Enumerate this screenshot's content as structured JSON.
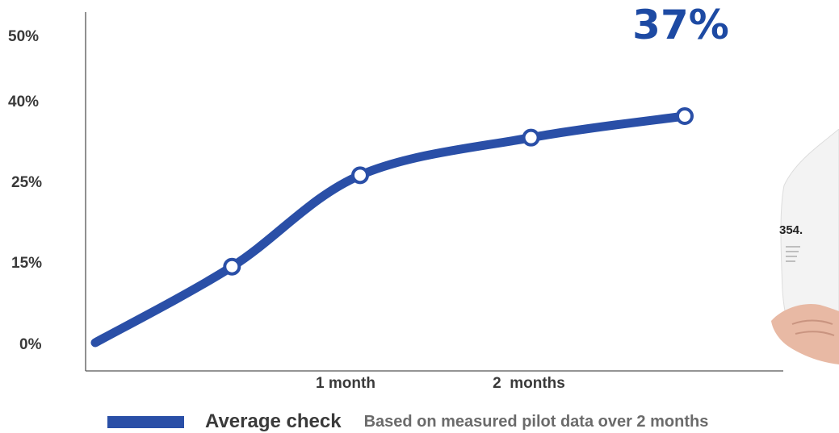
{
  "chart_data": {
    "type": "line",
    "title": "",
    "xlabel": "",
    "ylabel": "",
    "y_ticks": [
      "0%",
      "15%",
      "25%",
      "40%",
      "50%"
    ],
    "x_ticks": [
      {
        "label": "1 month",
        "x": 1
      },
      {
        "label": "2  months",
        "x": 2
      }
    ],
    "x_range": [
      -0.9,
      3.5
    ],
    "series": [
      {
        "name": "Average check",
        "points": [
          {
            "x": 0.0,
            "y": 0
          },
          {
            "x": 0.8,
            "y": 14
          },
          {
            "x": 1.55,
            "y": 26
          },
          {
            "x": 2.55,
            "y": 33
          },
          {
            "x": 3.45,
            "y": 37
          }
        ]
      }
    ],
    "callout": "37%",
    "footnote": "Based on measured pilot data over 2 months",
    "series_color": "#2a4fa7",
    "grid": false,
    "legend_position": "bottom-left"
  }
}
